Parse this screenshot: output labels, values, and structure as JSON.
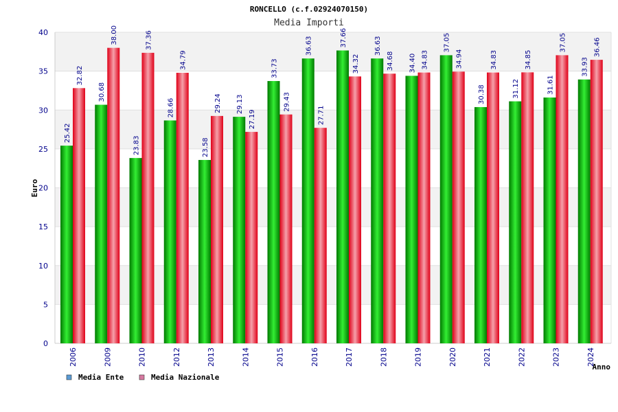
{
  "chart_data": {
    "type": "bar",
    "title": "RONCELLO (c.f.02924070150)",
    "subtitle": "Media Importi",
    "ylabel": "Euro",
    "xlabel": "Anno",
    "ylim": [
      0,
      40
    ],
    "yticks": [
      0,
      5,
      10,
      15,
      20,
      25,
      30,
      35,
      40
    ],
    "categories": [
      "2006",
      "2009",
      "2010",
      "2012",
      "2013",
      "2014",
      "2015",
      "2016",
      "2017",
      "2018",
      "2019",
      "2020",
      "2021",
      "2022",
      "2023",
      "2024"
    ],
    "series": [
      {
        "name": "Media Ente",
        "color": "#00c000",
        "legend_color": "#5b9bd5",
        "values": [
          25.42,
          30.68,
          23.83,
          28.66,
          23.58,
          29.13,
          33.73,
          36.63,
          37.66,
          36.63,
          34.4,
          37.05,
          30.38,
          31.12,
          31.61,
          33.93
        ],
        "labels": [
          "25.42",
          "30.68",
          "23.83",
          "28.66",
          "23.58",
          "29.13",
          "33.73",
          "36.63",
          "37.66",
          "36.63",
          "34.40",
          "37.05",
          "30.38",
          "31.12",
          "31.61",
          "33.93"
        ]
      },
      {
        "name": "Media Nazionale",
        "color": "#e8102a",
        "legend_color": "#d67aa0",
        "values": [
          32.82,
          38.0,
          37.36,
          34.79,
          29.24,
          27.19,
          29.43,
          27.71,
          34.32,
          34.68,
          34.83,
          34.94,
          34.83,
          34.85,
          37.05,
          36.46
        ],
        "labels": [
          "32.82",
          "38.00",
          "37.36",
          "34.79",
          "29.24",
          "27.19",
          "29.43",
          "27.71",
          "34.32",
          "34.68",
          "34.83",
          "34.94",
          "34.83",
          "34.85",
          "37.05",
          "36.46"
        ]
      }
    ],
    "grid": true,
    "legend_position": "bottom-left"
  }
}
